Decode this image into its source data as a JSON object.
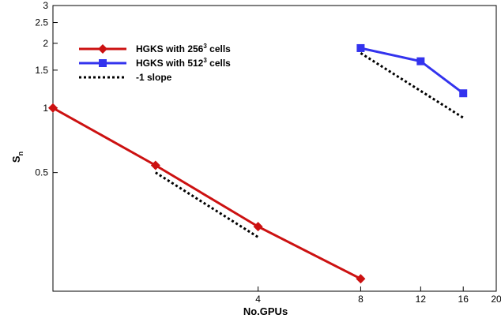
{
  "chart_data": {
    "type": "line",
    "title": "",
    "xlabel": "No.GPUs",
    "ylabel": "S",
    "ylabel_subscript": "n",
    "xscale": "log",
    "yscale": "log",
    "xlim": [
      1,
      20
    ],
    "ylim": [
      0.14,
      3
    ],
    "x_ticks": [
      {
        "value": 4,
        "label": "4"
      },
      {
        "value": 8,
        "label": "8"
      },
      {
        "value": 12,
        "label": "12"
      },
      {
        "value": 16,
        "label": "16"
      },
      {
        "value": 20,
        "label": "20"
      }
    ],
    "y_ticks": [
      {
        "value": 0.5,
        "label": "0.5"
      },
      {
        "value": 1,
        "label": "1"
      },
      {
        "value": 1.5,
        "label": "1.5"
      },
      {
        "value": 2,
        "label": "2"
      },
      {
        "value": 2.5,
        "label": "2.5"
      },
      {
        "value": 3,
        "label": "3"
      }
    ],
    "grid": false,
    "legend_position": "top-left",
    "series": [
      {
        "name": "HGKS with 256",
        "name_sup": "3",
        "name_suffix": " cells",
        "color": "#cc1111",
        "marker": "diamond",
        "line_style": "solid",
        "x": [
          1,
          2,
          4,
          8
        ],
        "y": [
          1.0,
          0.54,
          0.28,
          0.16
        ]
      },
      {
        "name": "HGKS with 512",
        "name_sup": "3",
        "name_suffix": " cells",
        "color": "#3333ee",
        "marker": "square",
        "line_style": "solid",
        "x": [
          8,
          12,
          16
        ],
        "y": [
          1.9,
          1.65,
          1.17
        ]
      },
      {
        "name": "-1 slope",
        "name_sup": "",
        "name_suffix": "",
        "color": "#000000",
        "marker": "none",
        "line_style": "dotted",
        "segments": [
          {
            "x": [
              2,
              4
            ],
            "y": [
              0.5,
              0.25
            ]
          },
          {
            "x": [
              8,
              16
            ],
            "y": [
              1.8,
              0.9
            ]
          }
        ]
      }
    ]
  }
}
